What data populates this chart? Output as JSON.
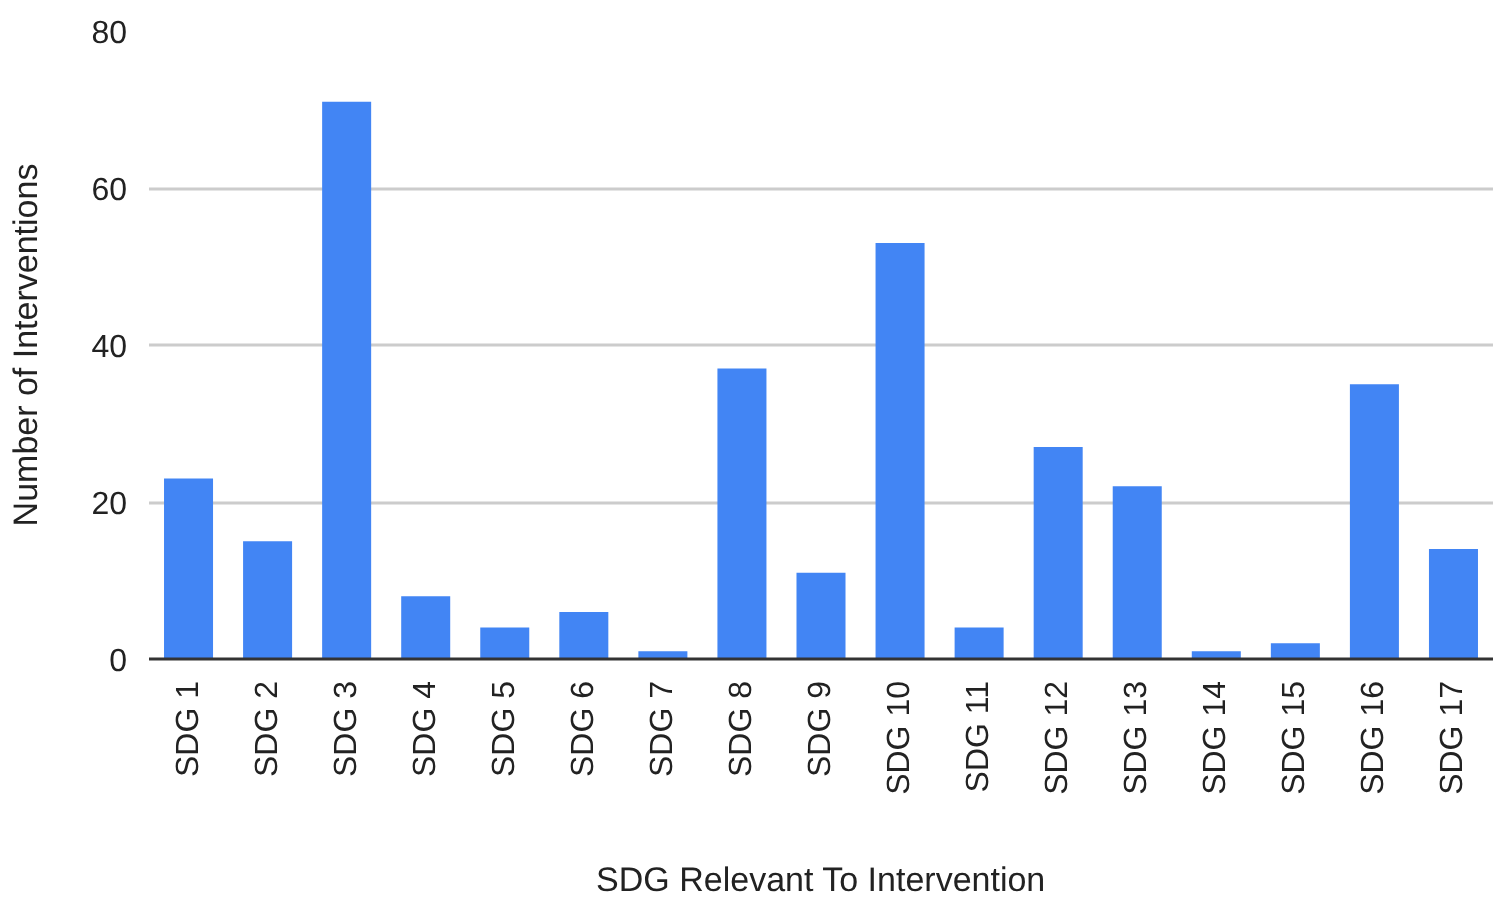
{
  "chart_data": {
    "type": "bar",
    "xlabel": "SDG Relevant To Intervention",
    "ylabel": "Number of Interventions",
    "categories": [
      "SDG 1",
      "SDG 2",
      "SDG 3",
      "SDG 4",
      "SDG 5",
      "SDG 6",
      "SDG 7",
      "SDG 8",
      "SDG 9",
      "SDG 10",
      "SDG 11",
      "SDG 12",
      "SDG 13",
      "SDG 14",
      "SDG 15",
      "SDG 16",
      "SDG 17"
    ],
    "values": [
      23,
      15,
      71,
      8,
      4,
      6,
      1,
      37,
      11,
      53,
      4,
      27,
      22,
      1,
      2,
      35,
      14
    ],
    "color": "#4285f4",
    "ylim": [
      0,
      80
    ],
    "yticks": [
      0,
      20,
      40,
      60,
      80
    ],
    "grid": "y"
  }
}
